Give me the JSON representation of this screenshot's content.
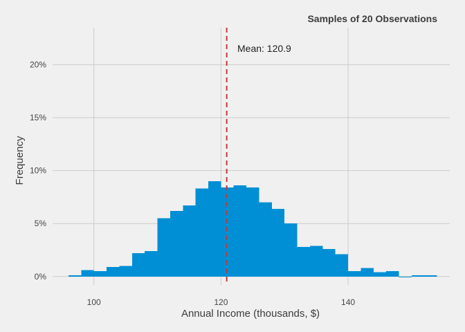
{
  "chart_data": {
    "type": "bar",
    "title": "Samples of 20 Observations",
    "xlabel": "Annual Income (thousands, $)",
    "ylabel": "Frequency",
    "xlim": [
      93.5,
      156
    ],
    "ylim": [
      -0.008,
      0.235
    ],
    "x_ticks": [
      100,
      120,
      140
    ],
    "x_tick_labels": [
      "100",
      "120",
      "140"
    ],
    "y_ticks": [
      0,
      0.05,
      0.1,
      0.15,
      0.2
    ],
    "y_tick_labels": [
      "0%",
      "5%",
      "10%",
      "15%",
      "20%"
    ],
    "grid": true,
    "bin_width": 2,
    "bins_start": [
      96,
      98,
      100,
      102,
      104,
      106,
      108,
      110,
      112,
      114,
      116,
      118,
      120,
      122,
      124,
      126,
      128,
      130,
      132,
      134,
      136,
      138,
      140,
      142,
      144,
      146,
      148,
      150,
      152
    ],
    "values": [
      0.001,
      0.006,
      0.005,
      0.009,
      0.01,
      0.022,
      0.024,
      0.055,
      0.062,
      0.067,
      0.083,
      0.09,
      0.084,
      0.086,
      0.084,
      0.07,
      0.064,
      0.05,
      0.028,
      0.029,
      0.026,
      0.021,
      0.005,
      0.008,
      0.004,
      0.005,
      0.0,
      0.001,
      0.001
    ],
    "bar_color": "#008fd5",
    "mean": {
      "value": 120.9,
      "label": "Mean: 120.9",
      "color": "#c0393b"
    }
  }
}
